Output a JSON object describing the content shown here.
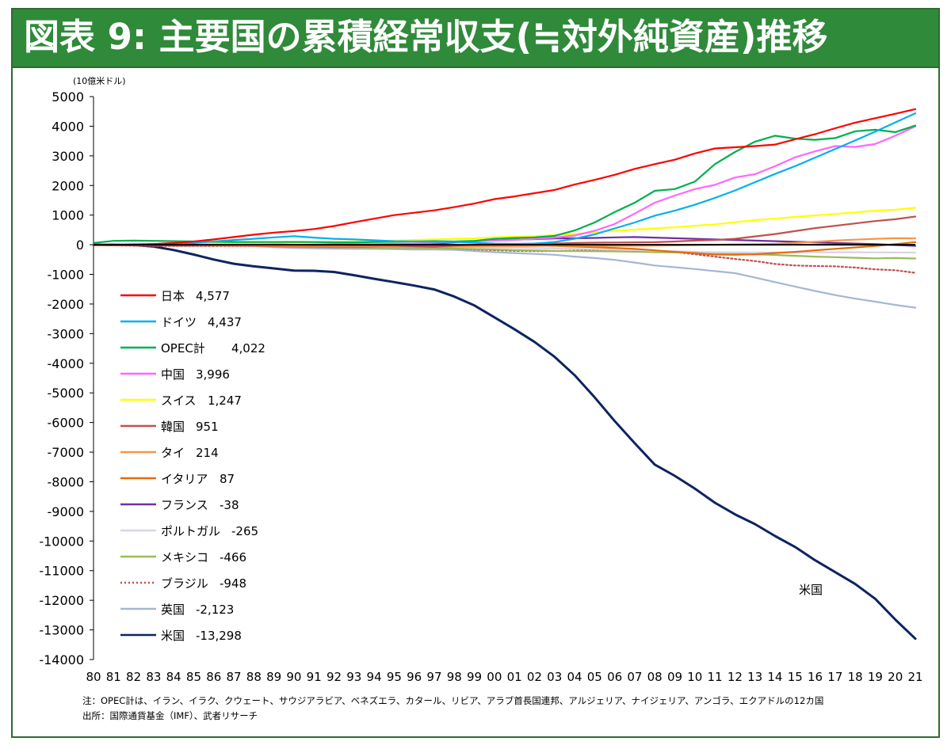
{
  "title": "図表 9: 主要国の累積経常収支(≒対外純資産)推移",
  "footnote": "注：OPEC計は、イラン、イラク、クウェート、サウジアラビア、ベネズエラ、カタール、リビア、アラブ首長国連邦、アルジェリア、ナイジェリア、アンゴラ、エクアドルの12カ国",
  "source": "出所：国際通貨基金（IMF）、武者リサーチ",
  "chart_data": {
    "type": "line",
    "ylabel": "(10億米ドル)",
    "ylim": [
      -14000,
      5000
    ],
    "yticks": [
      "5000",
      "4000",
      "3000",
      "2000",
      "1000",
      "0",
      "-1000",
      "-2000",
      "-3000",
      "-4000",
      "-5000",
      "-6000",
      "-7000",
      "-8000",
      "-9000",
      "-10000",
      "-11000",
      "-12000",
      "-13000",
      "-14000"
    ],
    "categories": [
      "80",
      "81",
      "82",
      "83",
      "84",
      "85",
      "86",
      "87",
      "88",
      "89",
      "90",
      "91",
      "92",
      "93",
      "94",
      "95",
      "96",
      "97",
      "98",
      "99",
      "00",
      "01",
      "02",
      "03",
      "04",
      "05",
      "06",
      "07",
      "08",
      "09",
      "10",
      "11",
      "12",
      "13",
      "14",
      "15",
      "16",
      "17",
      "18",
      "19",
      "20",
      "21"
    ],
    "annotation": "米国",
    "legend_position": "left",
    "series": [
      {
        "name": "日本",
        "label": "4,577",
        "color": "#ff0000",
        "style": "solid",
        "values": [
          -10,
          -5,
          5,
          25,
          60,
          110,
          180,
          260,
          340,
          410,
          460,
          530,
          630,
          760,
          880,
          1000,
          1080,
          1160,
          1270,
          1390,
          1540,
          1630,
          1740,
          1850,
          2030,
          2190,
          2360,
          2560,
          2720,
          2870,
          3080,
          3250,
          3290,
          3330,
          3380,
          3560,
          3730,
          3930,
          4120,
          4270,
          4420,
          4577
        ]
      },
      {
        "name": "ドイツ",
        "label": "4,437",
        "color": "#00b0f0",
        "style": "solid",
        "values": [
          0,
          5,
          10,
          15,
          30,
          60,
          110,
          160,
          200,
          250,
          290,
          240,
          200,
          180,
          150,
          120,
          110,
          100,
          90,
          70,
          40,
          30,
          40,
          90,
          200,
          350,
          550,
          750,
          980,
          1150,
          1350,
          1580,
          1830,
          2110,
          2390,
          2650,
          2940,
          3230,
          3520,
          3820,
          4130,
          4437
        ]
      },
      {
        "name": "OPEC計",
        "label": "4,022",
        "color": "#00b050",
        "style": "solid",
        "values": [
          60,
          130,
          140,
          130,
          120,
          110,
          100,
          95,
          90,
          90,
          95,
          90,
          80,
          80,
          90,
          100,
          110,
          120,
          110,
          130,
          200,
          230,
          250,
          300,
          480,
          750,
          1100,
          1420,
          1820,
          1880,
          2130,
          2720,
          3130,
          3480,
          3680,
          3580,
          3540,
          3600,
          3830,
          3880,
          3800,
          4022
        ]
      },
      {
        "name": "中国",
        "label": "3,996",
        "color": "#ff66ff",
        "style": "solid",
        "values": [
          0,
          0,
          5,
          10,
          10,
          0,
          -10,
          -10,
          -20,
          -20,
          0,
          10,
          20,
          20,
          20,
          30,
          40,
          70,
          100,
          120,
          140,
          160,
          200,
          240,
          310,
          470,
          700,
          1050,
          1420,
          1660,
          1880,
          2020,
          2270,
          2380,
          2650,
          2950,
          3150,
          3330,
          3300,
          3400,
          3680,
          3996
        ]
      },
      {
        "name": "スイス",
        "label": "1,247",
        "color": "#ffff00",
        "style": "solid",
        "values": [
          0,
          5,
          10,
          15,
          20,
          30,
          40,
          50,
          60,
          70,
          80,
          90,
          100,
          110,
          120,
          140,
          160,
          180,
          200,
          220,
          250,
          270,
          290,
          320,
          360,
          420,
          470,
          510,
          550,
          590,
          640,
          690,
          760,
          830,
          880,
          940,
          990,
          1040,
          1090,
          1150,
          1180,
          1247
        ]
      },
      {
        "name": "韓国",
        "label": "951",
        "color": "#c0504d",
        "style": "solid",
        "values": [
          -5,
          -10,
          -15,
          -20,
          -25,
          -30,
          -20,
          -10,
          0,
          5,
          0,
          -10,
          -15,
          -20,
          -25,
          -30,
          -50,
          -70,
          -30,
          0,
          10,
          20,
          30,
          40,
          60,
          70,
          75,
          80,
          85,
          110,
          140,
          160,
          200,
          280,
          360,
          460,
          560,
          640,
          720,
          800,
          860,
          951
        ]
      },
      {
        "name": "タイ",
        "label": "214",
        "color": "#f79646",
        "style": "solid",
        "values": [
          0,
          -2,
          -4,
          -6,
          -8,
          -10,
          -12,
          -14,
          -18,
          -22,
          -28,
          -35,
          -40,
          -45,
          -55,
          -65,
          -75,
          -80,
          -70,
          -60,
          -50,
          -45,
          -40,
          -35,
          -30,
          -35,
          -40,
          -35,
          -30,
          -20,
          -10,
          0,
          10,
          15,
          30,
          60,
          100,
          140,
          170,
          200,
          220,
          214
        ]
      },
      {
        "name": "イタリア",
        "label": "87",
        "color": "#e46c0a",
        "style": "solid",
        "values": [
          -5,
          -10,
          -15,
          -20,
          -25,
          -30,
          -30,
          -35,
          -40,
          -50,
          -60,
          -70,
          -80,
          -80,
          -70,
          -60,
          -50,
          -40,
          -30,
          -25,
          -20,
          -20,
          -25,
          -40,
          -60,
          -80,
          -110,
          -140,
          -190,
          -240,
          -280,
          -330,
          -340,
          -320,
          -280,
          -240,
          -190,
          -140,
          -90,
          -40,
          20,
          87
        ]
      },
      {
        "name": "フランス",
        "label": "-38",
        "color": "#7030a0",
        "style": "solid",
        "values": [
          -5,
          -10,
          -20,
          -25,
          -25,
          -20,
          -15,
          -10,
          -15,
          -15,
          -20,
          -30,
          -25,
          -20,
          -10,
          0,
          20,
          40,
          80,
          120,
          150,
          170,
          190,
          210,
          220,
          230,
          250,
          260,
          240,
          220,
          200,
          180,
          160,
          140,
          120,
          100,
          80,
          60,
          40,
          20,
          -10,
          -38
        ]
      },
      {
        "name": "ポルトガル",
        "label": "-265",
        "color": "#d9d2e9",
        "style": "solid",
        "values": [
          -5,
          -10,
          -15,
          -20,
          -20,
          -20,
          -20,
          -20,
          -25,
          -30,
          -30,
          -35,
          -35,
          -35,
          -40,
          -45,
          -50,
          -55,
          -65,
          -75,
          -90,
          -100,
          -115,
          -125,
          -135,
          -150,
          -165,
          -180,
          -200,
          -220,
          -240,
          -255,
          -260,
          -260,
          -258,
          -255,
          -255,
          -255,
          -255,
          -258,
          -262,
          -265
        ]
      },
      {
        "name": "メキシコ",
        "label": "-466",
        "color": "#9bbb59",
        "style": "solid",
        "values": [
          -10,
          -20,
          -15,
          -10,
          -5,
          0,
          -5,
          0,
          -5,
          -10,
          -20,
          -35,
          -60,
          -85,
          -110,
          -110,
          -110,
          -115,
          -130,
          -145,
          -160,
          -180,
          -195,
          -210,
          -215,
          -220,
          -225,
          -235,
          -250,
          -260,
          -270,
          -285,
          -300,
          -320,
          -345,
          -375,
          -400,
          -420,
          -440,
          -460,
          -450,
          -466
        ]
      },
      {
        "name": "ブラジル",
        "label": "-948",
        "color": "#c0504d",
        "style": "dotted",
        "values": [
          -10,
          -20,
          -35,
          -40,
          -40,
          -40,
          -45,
          -45,
          -45,
          -45,
          -45,
          -45,
          -45,
          -45,
          -45,
          -50,
          -70,
          -100,
          -130,
          -160,
          -185,
          -205,
          -215,
          -210,
          -200,
          -190,
          -180,
          -190,
          -220,
          -245,
          -320,
          -400,
          -480,
          -550,
          -650,
          -700,
          -720,
          -730,
          -770,
          -830,
          -860,
          -948
        ]
      },
      {
        "name": "英国",
        "label": "-2,123",
        "color": "#a5b5d7",
        "style": "solid",
        "values": [
          5,
          10,
          15,
          20,
          20,
          20,
          10,
          -10,
          -40,
          -80,
          -110,
          -120,
          -130,
          -140,
          -140,
          -150,
          -160,
          -160,
          -170,
          -210,
          -250,
          -280,
          -310,
          -340,
          -400,
          -450,
          -510,
          -600,
          -700,
          -760,
          -820,
          -890,
          -960,
          -1110,
          -1260,
          -1410,
          -1560,
          -1700,
          -1820,
          -1920,
          -2030,
          -2123
        ]
      },
      {
        "name": "米国",
        "label": "-13,298",
        "color": "#0d2460",
        "style": "solid",
        "values": [
          0,
          5,
          -10,
          -60,
          -180,
          -330,
          -500,
          -640,
          -730,
          -800,
          -870,
          -880,
          -920,
          -1030,
          -1150,
          -1260,
          -1380,
          -1510,
          -1750,
          -2050,
          -2450,
          -2850,
          -3280,
          -3780,
          -4400,
          -5150,
          -5950,
          -6700,
          -7420,
          -7800,
          -8230,
          -8710,
          -9100,
          -9430,
          -9830,
          -10200,
          -10650,
          -11050,
          -11450,
          -11950,
          -12650,
          -13298
        ]
      }
    ]
  }
}
